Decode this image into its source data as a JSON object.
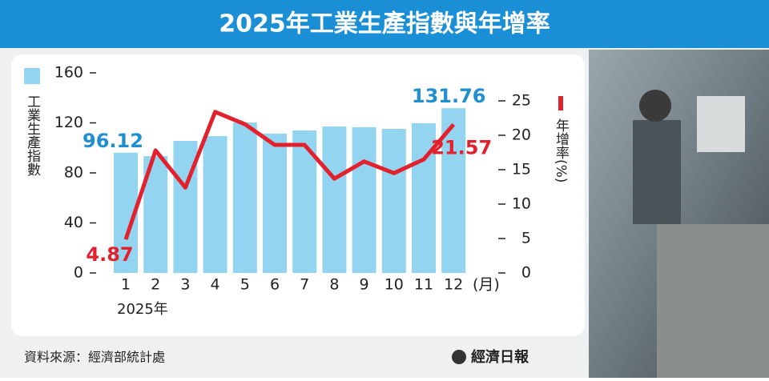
{
  "chart_data": {
    "type": "bar-line",
    "title": "2025年工業生產指數與年增率",
    "ylabel": "工業生產指數",
    "y2label": "年增率(%)",
    "xlabel": "2025年",
    "x_unit": "(月)",
    "categories": [
      "1",
      "2",
      "3",
      "4",
      "5",
      "6",
      "7",
      "8",
      "9",
      "10",
      "11",
      "12"
    ],
    "series": [
      {
        "type": "bar",
        "color": "#93d4f0",
        "label_color": "#1f8fd0",
        "values": [
          96.12,
          93.4,
          105.6,
          109.4,
          120.3,
          111.4,
          113.9,
          117.1,
          116.5,
          115.2,
          119.7,
          131.76
        ]
      },
      {
        "type": "line",
        "axis": "y2",
        "color": "#e3212d",
        "label_color": "#e3212d",
        "values": [
          4.87,
          17.8,
          12.4,
          23.4,
          21.6,
          18.6,
          18.6,
          13.7,
          16.2,
          14.5,
          16.5,
          21.57
        ]
      }
    ],
    "ylim": [
      0,
      160
    ],
    "yticks": [
      0,
      40,
      80,
      120,
      160
    ],
    "y2lim": [
      0,
      25
    ],
    "y2ticks": [
      0,
      5,
      10,
      15,
      20,
      25
    ]
  },
  "footer": {
    "source": "資料來源：經濟部統計處",
    "brand": "經濟日報"
  }
}
